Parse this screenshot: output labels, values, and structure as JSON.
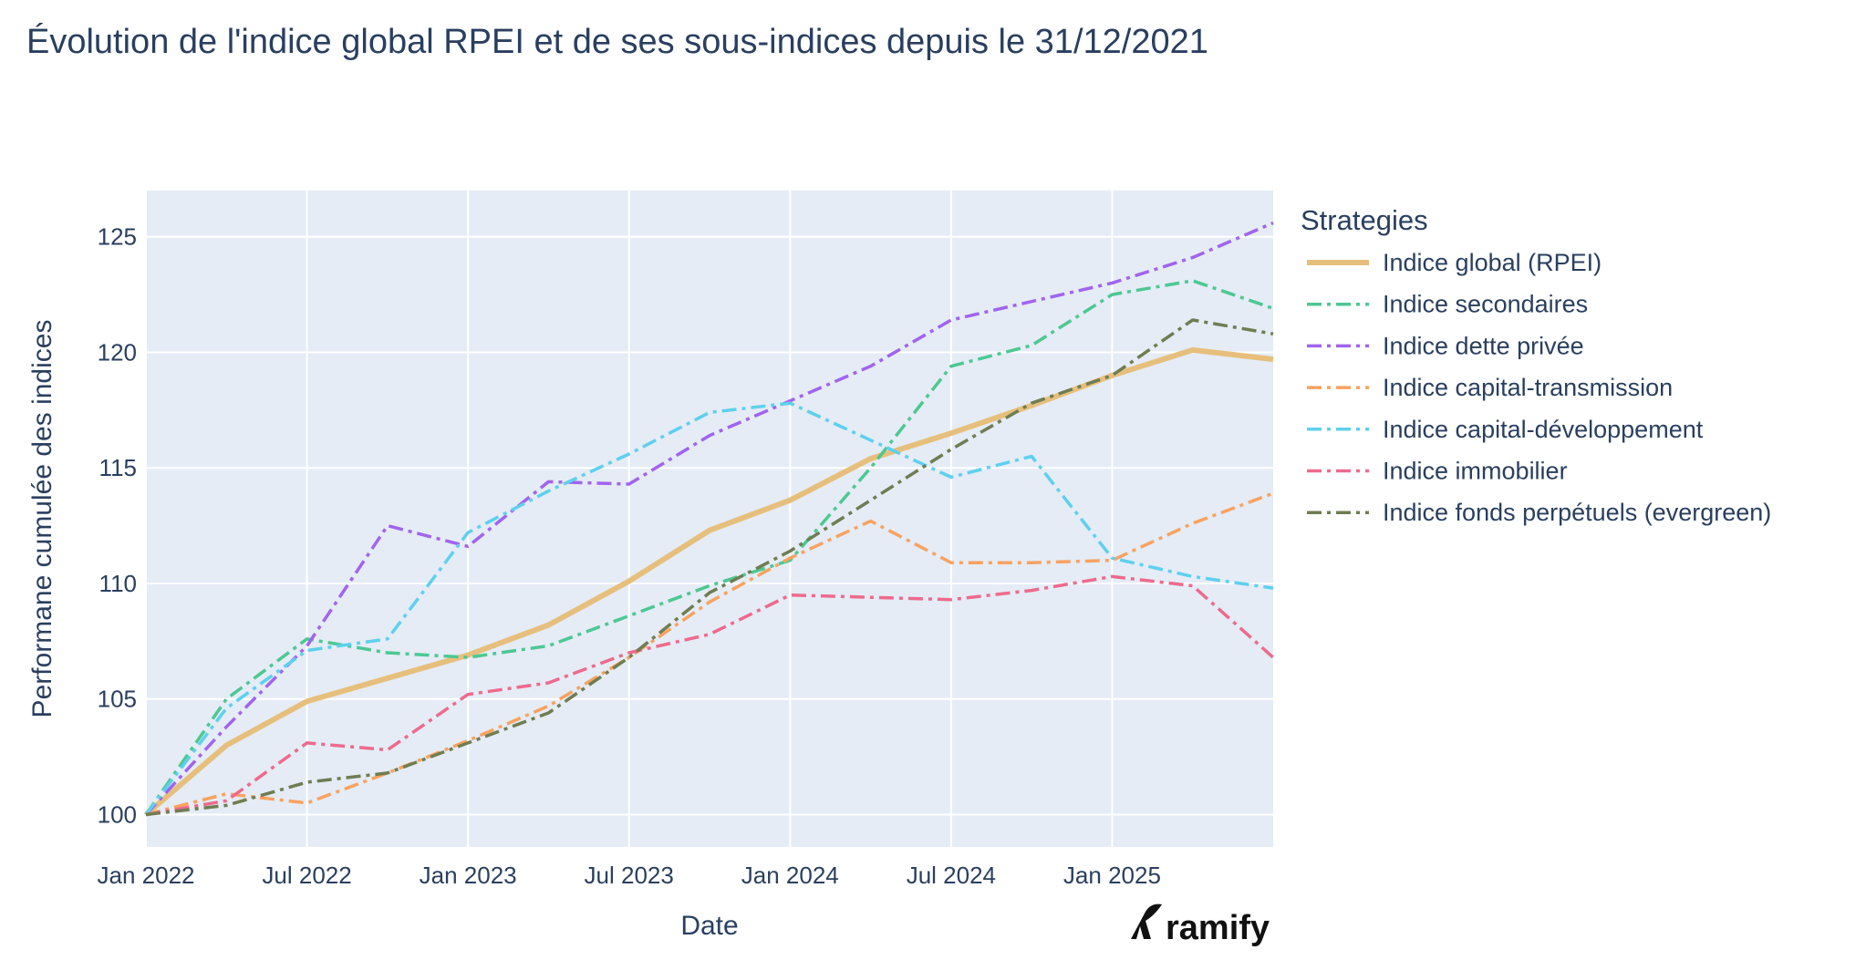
{
  "chart_data": {
    "type": "line",
    "title": "Évolution de l'indice global RPEI et de ses sous-indices depuis le 31/12/2021",
    "xlabel": "Date",
    "ylabel": "Performane cumulée des indices",
    "ylim": [
      98.6,
      127
    ],
    "xlim": [
      "2022-01",
      "2025-07"
    ],
    "yticks": [
      100,
      105,
      110,
      115,
      120,
      125
    ],
    "xticks": [
      {
        "date": "2022-01",
        "label": "Jan 2022"
      },
      {
        "date": "2022-07",
        "label": "Jul 2022"
      },
      {
        "date": "2023-01",
        "label": "Jan 2023"
      },
      {
        "date": "2023-07",
        "label": "Jul 2023"
      },
      {
        "date": "2024-01",
        "label": "Jan 2024"
      },
      {
        "date": "2024-07",
        "label": "Jul 2024"
      },
      {
        "date": "2025-01",
        "label": "Jan 2025"
      }
    ],
    "grid": true,
    "legend_title": "Strategies",
    "legend_position": "right",
    "x": [
      "2022-01",
      "2022-04",
      "2022-07",
      "2022-10",
      "2023-01",
      "2023-04",
      "2023-07",
      "2023-10",
      "2024-01",
      "2024-04",
      "2024-07",
      "2024-10",
      "2025-01",
      "2025-04",
      "2025-07"
    ],
    "series": [
      {
        "name": "Indice global (RPEI)",
        "color": "#e7bf7c",
        "dash": "solid",
        "values": [
          100,
          103.0,
          104.9,
          105.9,
          106.9,
          108.2,
          110.1,
          112.3,
          113.6,
          115.4,
          116.5,
          117.7,
          119.0,
          120.1,
          119.7
        ]
      },
      {
        "name": "Indice secondaires",
        "color": "#4cc892",
        "dash": "dashdot",
        "values": [
          100,
          105.0,
          107.6,
          107.0,
          106.8,
          107.3,
          108.6,
          109.9,
          111.0,
          115.0,
          119.4,
          120.3,
          122.5,
          123.1,
          121.9
        ]
      },
      {
        "name": "Indice dette privée",
        "color": "#a163f0",
        "dash": "dashdot",
        "values": [
          100,
          103.8,
          107.3,
          112.5,
          111.6,
          114.4,
          114.3,
          116.4,
          117.9,
          119.4,
          121.4,
          122.2,
          123.0,
          124.1,
          125.6
        ]
      },
      {
        "name": "Indice capital-transmission",
        "color": "#f9a25f",
        "dash": "dashdot",
        "values": [
          100,
          100.9,
          100.5,
          101.8,
          103.2,
          104.7,
          106.8,
          109.2,
          111.1,
          112.7,
          110.9,
          110.9,
          111.0,
          112.6,
          113.9
        ]
      },
      {
        "name": "Indice capital-développement",
        "color": "#5ed0ee",
        "dash": "dashdot",
        "values": [
          100,
          104.6,
          107.1,
          107.6,
          112.2,
          114.0,
          115.6,
          117.4,
          117.8,
          116.2,
          114.6,
          115.5,
          111.1,
          110.3,
          109.8
        ]
      },
      {
        "name": "Indice immobilier",
        "color": "#ee6a8c",
        "dash": "dashdot",
        "values": [
          100,
          100.6,
          103.1,
          102.8,
          105.2,
          105.7,
          107.0,
          107.8,
          109.5,
          109.4,
          109.3,
          109.7,
          110.3,
          109.9,
          106.8
        ]
      },
      {
        "name": "Indice fonds perpétuels (evergreen)",
        "color": "#6f7d52",
        "dash": "dashdot",
        "values": [
          100,
          100.4,
          101.4,
          101.8,
          103.1,
          104.4,
          106.8,
          109.6,
          111.4,
          113.6,
          115.8,
          117.8,
          119.0,
          121.4,
          120.8
        ]
      }
    ]
  },
  "brand": {
    "logo_text": "ramify"
  }
}
